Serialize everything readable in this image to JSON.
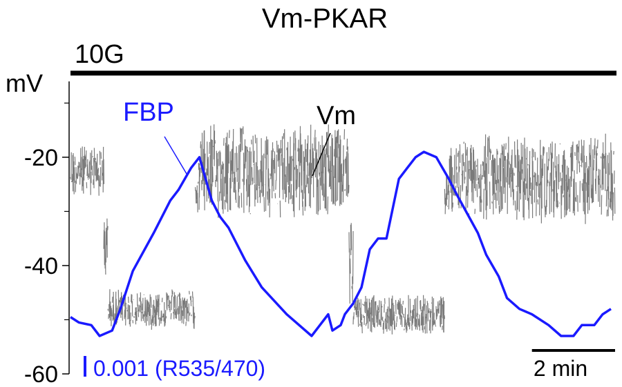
{
  "chart_data": {
    "type": "line",
    "title": "Vm-PKAR",
    "condition": {
      "label": "10G"
    },
    "yaxis": {
      "unit_label": "mV",
      "ylim": [
        -60,
        -6
      ],
      "ticks": [
        -60,
        -40,
        -20
      ],
      "tick_labels": [
        "-60",
        "-40",
        "-20"
      ],
      "minor_ticks": [
        -50,
        -30,
        -10
      ]
    },
    "xlim": [
      0,
      13.1
    ],
    "x_unit": "min",
    "scale_bars": {
      "fbp": {
        "label": "0.001 (R535/470)",
        "color": "#1a1aff"
      },
      "time": {
        "label": "2 min",
        "minutes": 2
      }
    },
    "series": [
      {
        "name": "Vm",
        "color": "#7a7a7a",
        "segments": [
          {
            "x": [
              0.0,
              0.8
            ],
            "y_low": -28,
            "y_high": -17
          },
          {
            "x": [
              0.8,
              0.9
            ],
            "y_low": -45,
            "y_high": -28
          },
          {
            "x": [
              0.9,
              3.0
            ],
            "y_low": -52,
            "y_high": -44
          },
          {
            "x": [
              3.0,
              3.1
            ],
            "y_low": -31,
            "y_high": -20
          },
          {
            "x": [
              3.1,
              6.7
            ],
            "y_low": -32,
            "y_high": -13
          },
          {
            "x": [
              6.7,
              6.8
            ],
            "y_low": -48,
            "y_high": -30
          },
          {
            "x": [
              6.8,
              9.0
            ],
            "y_low": -53,
            "y_high": -45
          },
          {
            "x": [
              9.0,
              9.1
            ],
            "y_low": -31,
            "y_high": -22
          },
          {
            "x": [
              9.1,
              13.1
            ],
            "y_low": -33,
            "y_high": -15
          }
        ]
      },
      {
        "name": "FBP",
        "color": "#1a1aff",
        "x": [
          0.0,
          0.2,
          0.5,
          0.7,
          1.0,
          1.2,
          1.5,
          2.0,
          2.4,
          2.6,
          2.9,
          3.1,
          3.4,
          3.6,
          3.8,
          4.2,
          4.6,
          5.2,
          5.8,
          6.0,
          6.1,
          6.2,
          6.3,
          6.5,
          6.6,
          6.8,
          7.0,
          7.2,
          7.4,
          7.6,
          7.9,
          8.1,
          8.3,
          8.5,
          8.8,
          9.1,
          9.3,
          9.8,
          10.0,
          10.3,
          10.5,
          10.8,
          11.1,
          11.5,
          11.8,
          12.1,
          12.3,
          12.6,
          12.8,
          13.0
        ],
        "y": [
          -49.5,
          -50.5,
          -51,
          -53,
          -52,
          -48,
          -41,
          -34,
          -28,
          -26,
          -22,
          -20,
          -28,
          -31,
          -33,
          -39,
          -44,
          -49,
          -53,
          -51,
          -50,
          -49,
          -52,
          -51,
          -49,
          -47,
          -44,
          -37,
          -35,
          -35,
          -24,
          -22,
          -20,
          -19,
          -20,
          -24,
          -27,
          -34,
          -38,
          -42,
          -46,
          -48,
          -49,
          -51,
          -53,
          -53,
          -51,
          -51,
          -49,
          -48
        ]
      }
    ],
    "annotations": [
      {
        "text": "FBP",
        "color": "#1a1aff"
      },
      {
        "text": "Vm",
        "color": "#000000"
      }
    ]
  }
}
